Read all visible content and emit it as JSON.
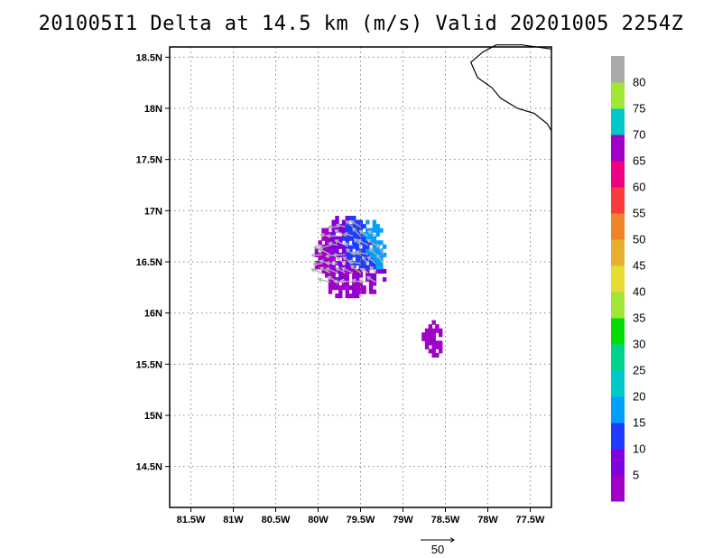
{
  "title": "201005I1 Delta at 14.5 km (m/s) Valid 20201005  2254Z",
  "chart_data": {
    "type": "heatmap",
    "title": "201005I1 Delta at 14.5 km (m/s) Valid 20201005  2254Z",
    "xlabel": "",
    "ylabel": "",
    "xlim": [
      -81.75,
      -77.25
    ],
    "ylim": [
      14.1,
      18.6
    ],
    "x_ticks": [
      {
        "value": -81.5,
        "label": "81.5W"
      },
      {
        "value": -81.0,
        "label": "81W"
      },
      {
        "value": -80.5,
        "label": "80.5W"
      },
      {
        "value": -80.0,
        "label": "80W"
      },
      {
        "value": -79.5,
        "label": "79.5W"
      },
      {
        "value": -79.0,
        "label": "79W"
      },
      {
        "value": -78.5,
        "label": "78.5W"
      },
      {
        "value": -78.0,
        "label": "78W"
      },
      {
        "value": -77.5,
        "label": "77.5W"
      }
    ],
    "y_ticks": [
      {
        "value": 14.5,
        "label": "14.5N"
      },
      {
        "value": 15.0,
        "label": "15N"
      },
      {
        "value": 15.5,
        "label": "15.5N"
      },
      {
        "value": 16.0,
        "label": "16N"
      },
      {
        "value": 16.5,
        "label": "16.5N"
      },
      {
        "value": 17.0,
        "label": "17N"
      },
      {
        "value": 17.5,
        "label": "17.5N"
      },
      {
        "value": 18.0,
        "label": "18N"
      },
      {
        "value": 18.5,
        "label": "18.5N"
      }
    ],
    "grid": true,
    "colorbar": {
      "unit": "m/s",
      "levels": [
        {
          "lower": 0,
          "color": "#a000c8",
          "label": "5"
        },
        {
          "lower": 5,
          "color": "#8200dc",
          "label": "10"
        },
        {
          "lower": 10,
          "color": "#1e3cff",
          "label": "15"
        },
        {
          "lower": 15,
          "color": "#00a0ff",
          "label": "20"
        },
        {
          "lower": 20,
          "color": "#00c8c8",
          "label": "25"
        },
        {
          "lower": 25,
          "color": "#00d28c",
          "label": "30"
        },
        {
          "lower": 30,
          "color": "#00dc00",
          "label": "35"
        },
        {
          "lower": 35,
          "color": "#a0e632",
          "label": "40"
        },
        {
          "lower": 40,
          "color": "#e6dc32",
          "label": "45"
        },
        {
          "lower": 45,
          "color": "#e6af2d",
          "label": "50"
        },
        {
          "lower": 50,
          "color": "#f08228",
          "label": "55"
        },
        {
          "lower": 55,
          "color": "#fa3c3c",
          "label": "60"
        },
        {
          "lower": 60,
          "color": "#f00082",
          "label": "65"
        },
        {
          "lower": 65,
          "color": "#a000c8",
          "label": "70"
        },
        {
          "lower": 70,
          "color": "#00c8c8",
          "label": "75"
        },
        {
          "lower": 75,
          "color": "#a0e632",
          "label": "80"
        },
        {
          "lower": 80,
          "color": "#aaaaaa",
          "label": ""
        }
      ]
    },
    "wind_scale": {
      "label": "50",
      "value": 50
    },
    "clusters": [
      {
        "name": "main",
        "lon_center": -79.62,
        "lat_center": 16.53,
        "lon_radius": 0.42,
        "lat_radius": 0.38,
        "peak_speed": 22
      },
      {
        "name": "south",
        "lon_center": -78.66,
        "lat_center": 15.73,
        "lon_radius": 0.12,
        "lat_radius": 0.16,
        "peak_speed": 4
      }
    ],
    "coastline": [
      [
        -78.06,
        18.55
      ],
      [
        -78.2,
        18.45
      ],
      [
        -78.12,
        18.3
      ],
      [
        -77.95,
        18.2
      ],
      [
        -77.85,
        18.1
      ],
      [
        -77.65,
        18.0
      ],
      [
        -77.45,
        17.95
      ],
      [
        -77.3,
        17.85
      ],
      [
        -77.25,
        17.78
      ]
    ]
  }
}
